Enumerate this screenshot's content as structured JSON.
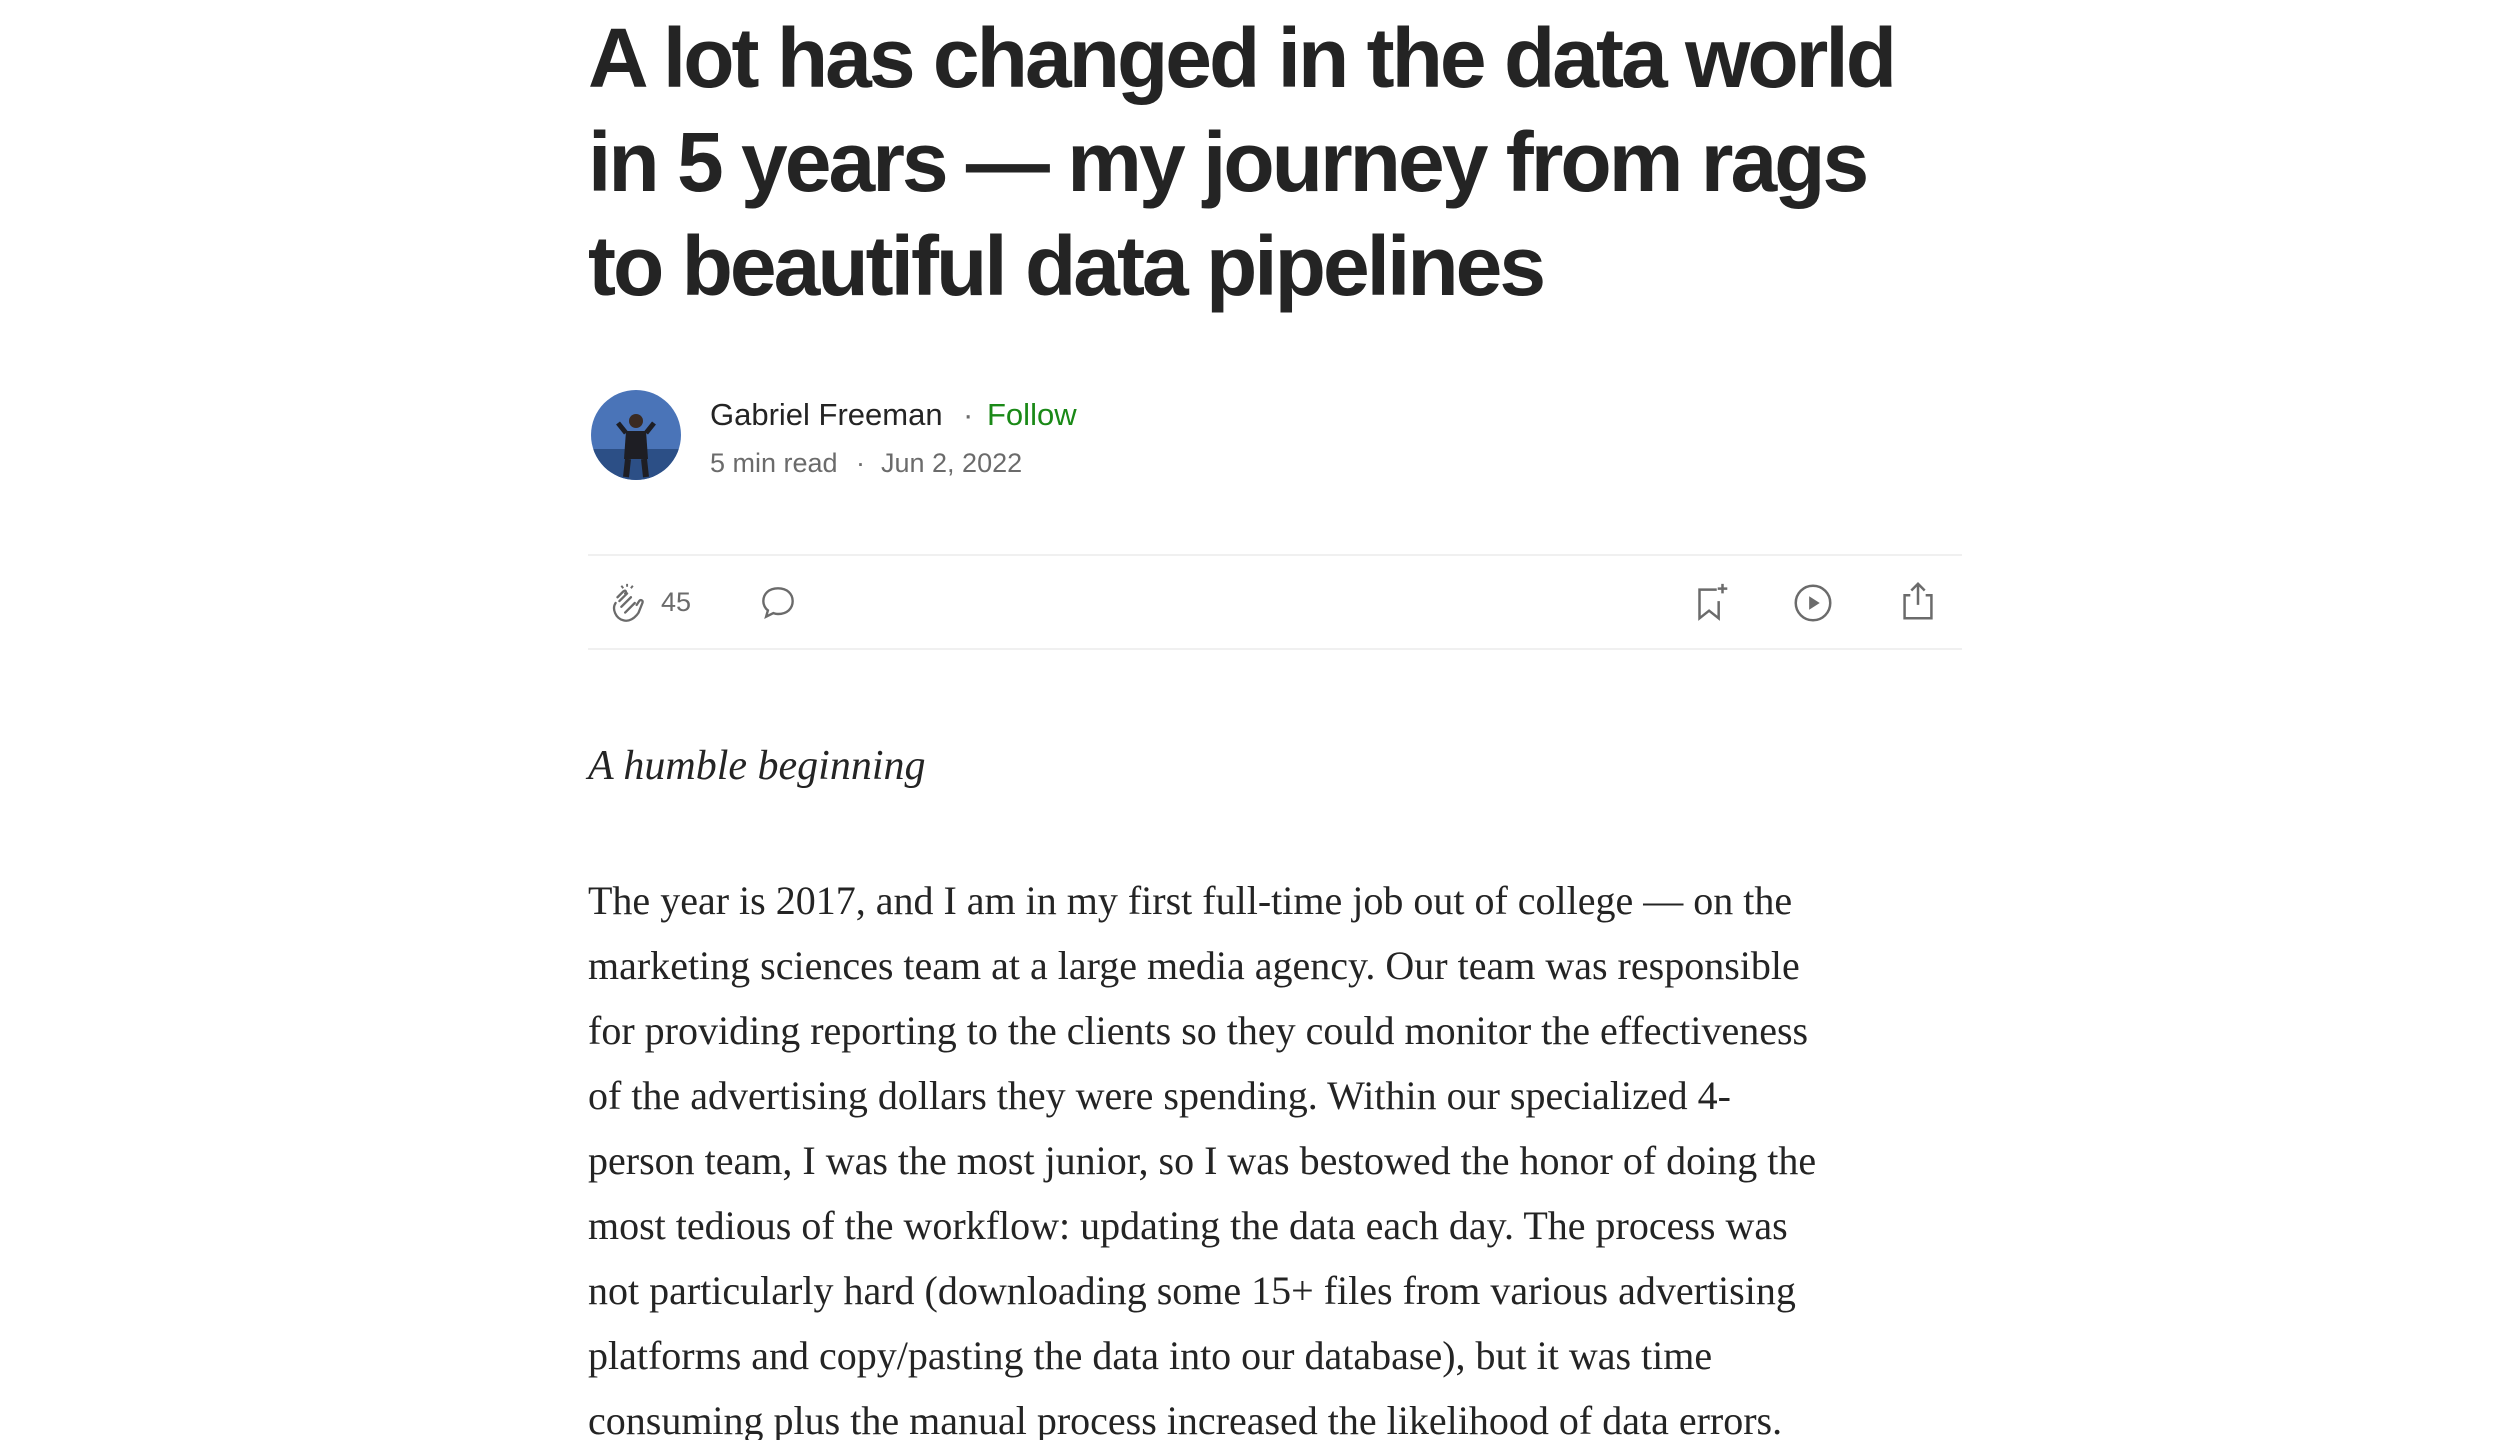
{
  "article": {
    "title_lines": [
      "A lot has changed in the data world",
      "in 5 years — my journey from rags",
      "to beautiful data pipelines"
    ],
    "author": {
      "name": "Gabriel Freeman",
      "follow": "Follow",
      "read_time": "5 min read",
      "date": "Jun 2, 2022"
    },
    "claps": "45",
    "subheading": "A humble beginning",
    "paragraph_lines": [
      "The year is 2017, and I am in my first full-time job out of college — on the",
      "marketing sciences team at a large media agency. Our team was responsible",
      "for providing reporting to the clients so they could monitor the effectiveness",
      "of the advertising dollars they were spending. Within our specialized 4-",
      "person team, I was the most junior, so I was bestowed the honor of doing the",
      "most tedious of the workflow: updating the data each day. The process was",
      "not particularly hard (downloading some 15+ files from various advertising",
      "platforms and copy/pasting the data into our database), but it was time",
      "consuming plus the manual process increased the likelihood of data errors."
    ]
  }
}
